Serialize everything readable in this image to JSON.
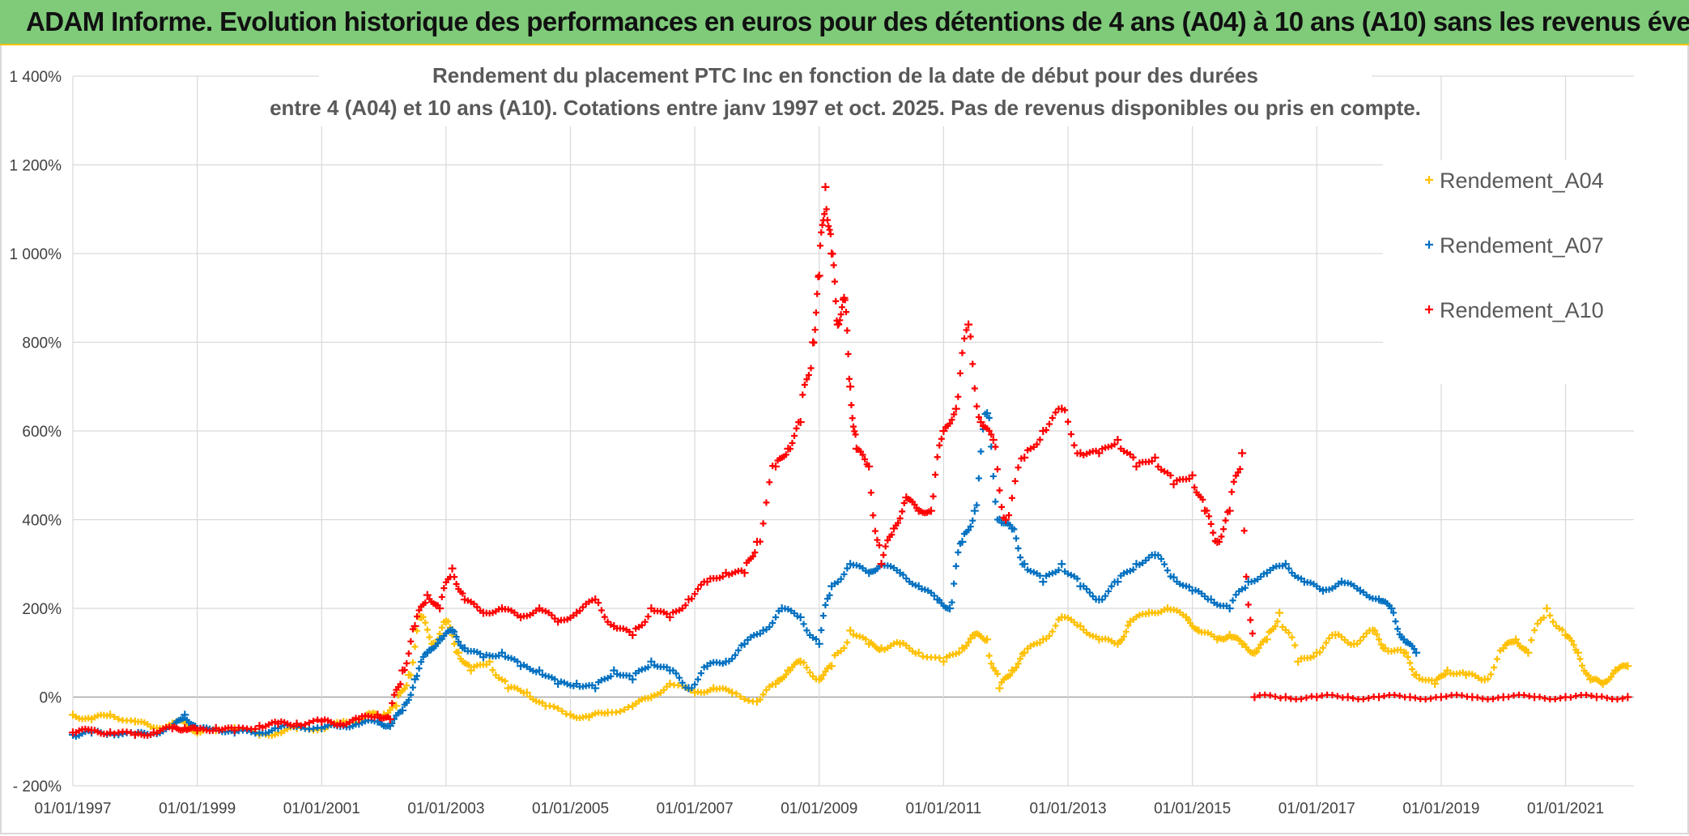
{
  "banner": {
    "title": "ADAM Informe. Evolution historique des performances en euros pour des détentions de 4 ans (A04) à 10 ans (A10) sans les revenus éventuels"
  },
  "colors": {
    "A04": "#ffc000",
    "A07": "#0070c0",
    "A10": "#ff0000",
    "banner": "#7fcb7a"
  },
  "chart_data": {
    "type": "scatter",
    "title_line1": "Rendement du placement PTC Inc en fonction de la date de début pour des durées",
    "title_line2": "entre 4 (A04) et 10 ans (A10). Cotations entre janv 1997 et oct. 2025. Pas de revenus disponibles ou pris en compte.",
    "xlabel": "",
    "ylabel": "",
    "x_ticks": [
      "01/01/1997",
      "01/01/1999",
      "01/01/2001",
      "01/01/2003",
      "01/01/2005",
      "01/01/2007",
      "01/01/2009",
      "01/01/2011",
      "01/01/2013",
      "01/01/2015",
      "01/01/2017",
      "01/01/2019",
      "01/01/2021"
    ],
    "xlim": [
      1997.0,
      2022.1
    ],
    "ylim": [
      -200,
      1400
    ],
    "y_ticks": [
      -200,
      0,
      200,
      400,
      600,
      800,
      1000,
      1200,
      1400
    ],
    "y_tick_labels": [
      "- 200%",
      "0%",
      "200%",
      "400%",
      "600%",
      "800%",
      "1 000%",
      "1 200%",
      "1 400%"
    ],
    "grid": true,
    "legend_position": "top-right",
    "series": [
      {
        "name": "Rendement_A04",
        "color": "#ffc000",
        "x": [
          1997.0,
          1997.3,
          1997.6,
          1998.0,
          1998.3,
          1998.6,
          1998.8,
          1999.0,
          1999.3,
          1999.6,
          2000.0,
          2000.3,
          2000.6,
          2001.0,
          2001.3,
          2001.6,
          2001.8,
          2002.0,
          2002.2,
          2002.4,
          2002.6,
          2002.8,
          2003.0,
          2003.2,
          2003.4,
          2003.7,
          2004.0,
          2004.3,
          2004.6,
          2005.0,
          2005.3,
          2005.6,
          2006.0,
          2006.3,
          2006.6,
          2007.0,
          2007.3,
          2007.6,
          2008.0,
          2008.3,
          2008.5,
          2008.7,
          2009.0,
          2009.2,
          2009.5,
          2009.8,
          2010.0,
          2010.3,
          2010.6,
          2011.0,
          2011.3,
          2011.5,
          2011.7,
          2011.9,
          2012.1,
          2012.3,
          2012.6,
          2012.9,
          2013.2,
          2013.5,
          2013.8,
          2014.0,
          2014.3,
          2014.6,
          2014.9,
          2015.1,
          2015.4,
          2015.6,
          2015.8,
          2016.0,
          2016.2,
          2016.4,
          2016.7,
          2017.0,
          2017.3,
          2017.6,
          2017.9,
          2018.1,
          2018.4,
          2018.6,
          2018.9,
          2019.1,
          2019.4,
          2019.7,
          2020.0,
          2020.2,
          2020.4,
          2020.7,
          2021.0,
          2021.2,
          2021.4,
          2021.6,
          2021.8,
          2022.0
        ],
        "y": [
          -40,
          -50,
          -40,
          -55,
          -70,
          -60,
          -55,
          -80,
          -75,
          -70,
          -85,
          -80,
          -70,
          -70,
          -60,
          -50,
          -40,
          -40,
          -20,
          50,
          180,
          120,
          170,
          100,
          60,
          80,
          20,
          10,
          -20,
          -40,
          -45,
          -35,
          -20,
          0,
          30,
          10,
          20,
          10,
          -10,
          30,
          60,
          80,
          40,
          70,
          150,
          120,
          110,
          120,
          100,
          80,
          110,
          140,
          130,
          20,
          60,
          100,
          130,
          180,
          160,
          130,
          120,
          170,
          190,
          200,
          180,
          150,
          130,
          140,
          120,
          100,
          130,
          190,
          80,
          100,
          140,
          120,
          150,
          110,
          100,
          50,
          30,
          60,
          50,
          40,
          110,
          130,
          100,
          200,
          140,
          100,
          40,
          30,
          60,
          70
        ]
      },
      {
        "name": "Rendement_A07",
        "color": "#0070c0",
        "x": [
          1997.0,
          1997.3,
          1997.6,
          1998.0,
          1998.3,
          1998.6,
          1998.8,
          1999.0,
          1999.3,
          1999.6,
          2000.0,
          2000.3,
          2000.6,
          2001.0,
          2001.3,
          2001.6,
          2001.9,
          2002.1,
          2002.3,
          2002.5,
          2002.7,
          2002.9,
          2003.1,
          2003.3,
          2003.6,
          2003.9,
          2004.2,
          2004.5,
          2004.8,
          2005.1,
          2005.4,
          2005.7,
          2006.0,
          2006.3,
          2006.6,
          2006.9,
          2007.2,
          2007.5,
          2007.8,
          2008.1,
          2008.4,
          2008.7,
          2009.0,
          2009.2,
          2009.5,
          2009.8,
          2010.0,
          2010.3,
          2010.6,
          2010.9,
          2011.1,
          2011.3,
          2011.5,
          2011.7,
          2011.9,
          2012.1,
          2012.3,
          2012.6,
          2012.9,
          2013.2,
          2013.5,
          2013.8,
          2014.1,
          2014.4,
          2014.7,
          2015.0,
          2015.3,
          2015.6,
          2015.9,
          2016.2,
          2016.5,
          2016.8,
          2017.1,
          2017.4,
          2017.7,
          2018.0,
          2018.2,
          2018.4,
          2018.6
        ],
        "y": [
          -85,
          -80,
          -80,
          -85,
          -80,
          -70,
          -40,
          -75,
          -70,
          -80,
          -80,
          -70,
          -65,
          -70,
          -65,
          -60,
          -55,
          -65,
          -30,
          40,
          100,
          130,
          150,
          110,
          90,
          100,
          70,
          60,
          30,
          30,
          20,
          60,
          40,
          80,
          60,
          20,
          70,
          80,
          120,
          150,
          200,
          180,
          120,
          250,
          300,
          280,
          300,
          280,
          250,
          220,
          200,
          350,
          420,
          640,
          400,
          380,
          300,
          260,
          300,
          250,
          220,
          260,
          300,
          320,
          270,
          240,
          220,
          200,
          260,
          280,
          300,
          260,
          240,
          260,
          240,
          220,
          200,
          130,
          100
        ]
      },
      {
        "name": "Rendement_A10",
        "color": "#ff0000",
        "x": [
          1997.0,
          1997.3,
          1997.6,
          1998.0,
          1998.3,
          1998.6,
          1998.8,
          1999.0,
          1999.3,
          1999.6,
          2000.0,
          2000.3,
          2000.6,
          2001.0,
          2001.3,
          2001.6,
          2001.9,
          2002.1,
          2002.3,
          2002.5,
          2002.7,
          2002.9,
          2003.1,
          2003.3,
          2003.6,
          2003.9,
          2004.2,
          2004.5,
          2004.8,
          2005.1,
          2005.4,
          2005.7,
          2006.0,
          2006.3,
          2006.6,
          2006.9,
          2007.2,
          2007.5,
          2007.8,
          2008.0,
          2008.3,
          2008.5,
          2008.7,
          2008.9,
          2009.0,
          2009.1,
          2009.2,
          2009.3,
          2009.4,
          2009.5,
          2009.6,
          2009.8,
          2010.0,
          2010.2,
          2010.4,
          2010.6,
          2010.8,
          2011.0,
          2011.2,
          2011.4,
          2011.6,
          2011.8,
          2012.0,
          2012.3,
          2012.6,
          2012.9,
          2013.2,
          2013.5,
          2013.8,
          2014.1,
          2014.4,
          2014.7,
          2015.0,
          2015.2,
          2015.4,
          2015.6,
          2015.8,
          2016.0,
          2016.5,
          2017.0,
          2017.5,
          2018.0,
          2018.5,
          2019.0,
          2019.5,
          2020.0,
          2020.5,
          2021.0,
          2021.5,
          2022.0
        ],
        "y": [
          -80,
          -75,
          -80,
          -85,
          -80,
          -70,
          -70,
          -75,
          -70,
          -75,
          -65,
          -60,
          -60,
          -55,
          -60,
          -50,
          -40,
          -50,
          60,
          160,
          230,
          200,
          290,
          220,
          190,
          200,
          180,
          200,
          170,
          190,
          220,
          160,
          140,
          200,
          180,
          220,
          260,
          280,
          280,
          350,
          520,
          560,
          620,
          800,
          950,
          1150,
          1000,
          840,
          900,
          700,
          560,
          520,
          300,
          380,
          450,
          420,
          420,
          600,
          650,
          840,
          620,
          580,
          400,
          540,
          600,
          650,
          550,
          550,
          580,
          520,
          540,
          480,
          500,
          420,
          350,
          420,
          550,
          0,
          0,
          0,
          0,
          0,
          0,
          0,
          0,
          0,
          0,
          0,
          0,
          0
        ]
      }
    ]
  }
}
